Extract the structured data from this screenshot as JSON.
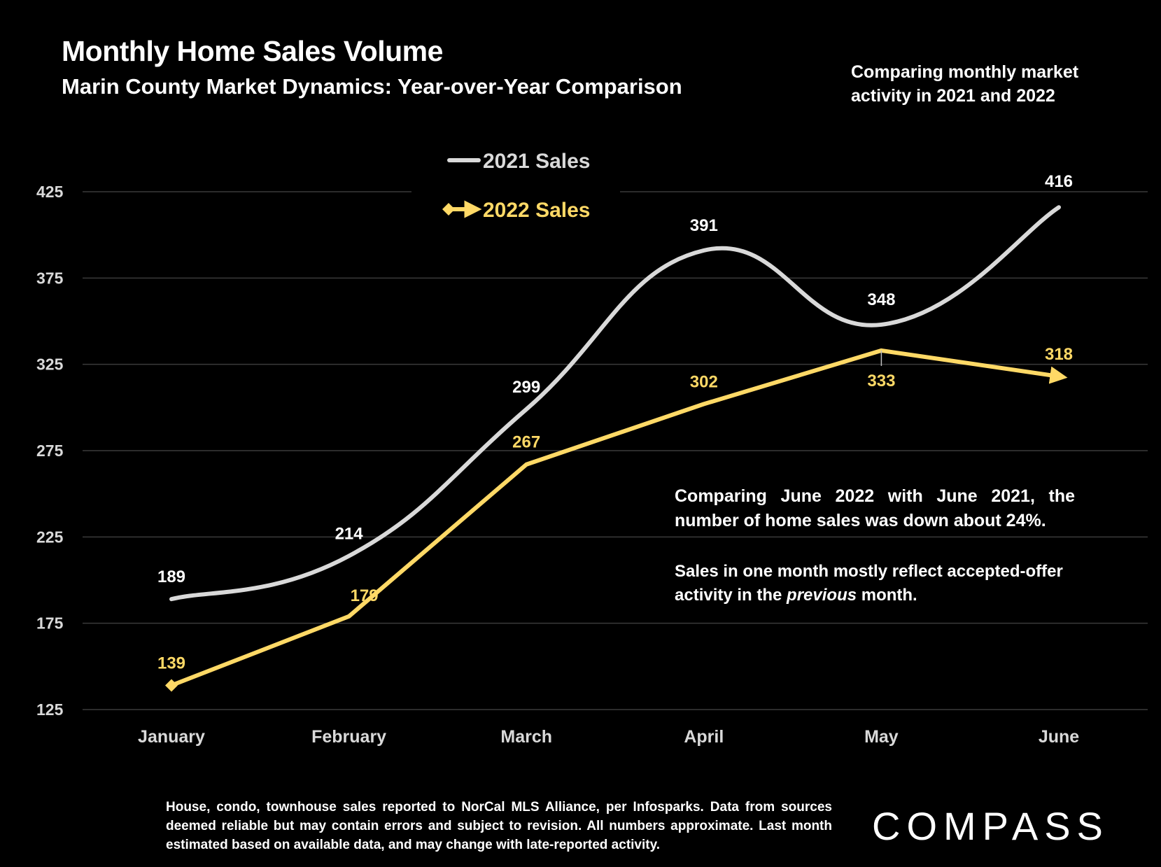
{
  "header": {
    "title": "Monthly Home Sales Volume",
    "subtitle": "Marin County Market Dynamics: Year-over-Year Comparison",
    "note": "Comparing monthly market activity in 2021 and 2022"
  },
  "commentary": {
    "line1": "Comparing June 2022 with June 2021, the number of home sales was down about 24%.",
    "line2_before": "Sales in one month mostly reflect accepted-offer activity in the ",
    "line2_emphasis": "previous",
    "line2_after": " month."
  },
  "footer": {
    "text": "House, condo, townhouse sales reported to NorCal MLS Alliance, per Infosparks. Data from sources deemed reliable but may contain errors and subject to revision. All numbers approximate. Last month estimated based on available data, and may change with late-reported activity.",
    "logo": "COMPASS"
  },
  "colors": {
    "background": "#000000",
    "series_2021": "#d9d9d9",
    "series_2022": "#ffd966",
    "grid": "#3a3a3a",
    "text": "#ffffff",
    "axis_text": "#d9d9d9"
  },
  "chart_data": {
    "type": "line",
    "categories": [
      "January",
      "February",
      "March",
      "April",
      "May",
      "June"
    ],
    "series": [
      {
        "name": "2021 Sales",
        "values": [
          189,
          214,
          299,
          391,
          348,
          416
        ],
        "smooth": true,
        "marker": "none"
      },
      {
        "name": "2022 Sales",
        "values": [
          139,
          179,
          267,
          302,
          333,
          318
        ],
        "smooth": false,
        "marker": "diamond-start arrow-end"
      }
    ],
    "yticks": [
      125,
      175,
      225,
      275,
      325,
      375,
      425
    ],
    "ylim": [
      125,
      425
    ],
    "grid": true,
    "legend_position": "top-center",
    "title": "Monthly Home Sales Volume",
    "xlabel": "",
    "ylabel": ""
  }
}
